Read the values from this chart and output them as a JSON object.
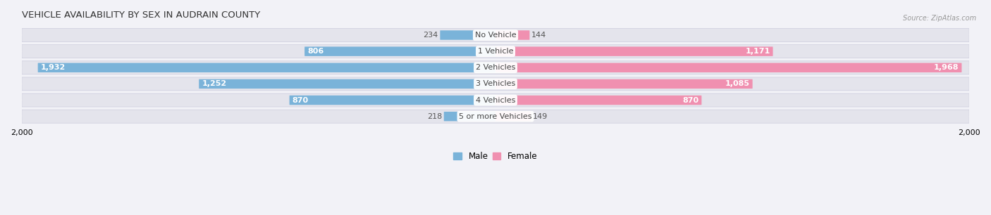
{
  "title": "VEHICLE AVAILABILITY BY SEX IN AUDRAIN COUNTY",
  "source": "Source: ZipAtlas.com",
  "categories": [
    "No Vehicle",
    "1 Vehicle",
    "2 Vehicles",
    "3 Vehicles",
    "4 Vehicles",
    "5 or more Vehicles"
  ],
  "male_values": [
    234,
    806,
    1932,
    1252,
    870,
    218
  ],
  "female_values": [
    144,
    1171,
    1968,
    1085,
    870,
    149
  ],
  "male_color": "#7ab3d9",
  "female_color": "#f090b0",
  "male_label": "Male",
  "female_label": "Female",
  "xlim": 2000,
  "background_color": "#f2f2f7",
  "bar_bg_color": "#e4e4ec",
  "bar_separator_color": "#ccccdd",
  "title_fontsize": 9.5,
  "label_fontsize": 8,
  "value_fontsize": 8,
  "inside_threshold": 400
}
